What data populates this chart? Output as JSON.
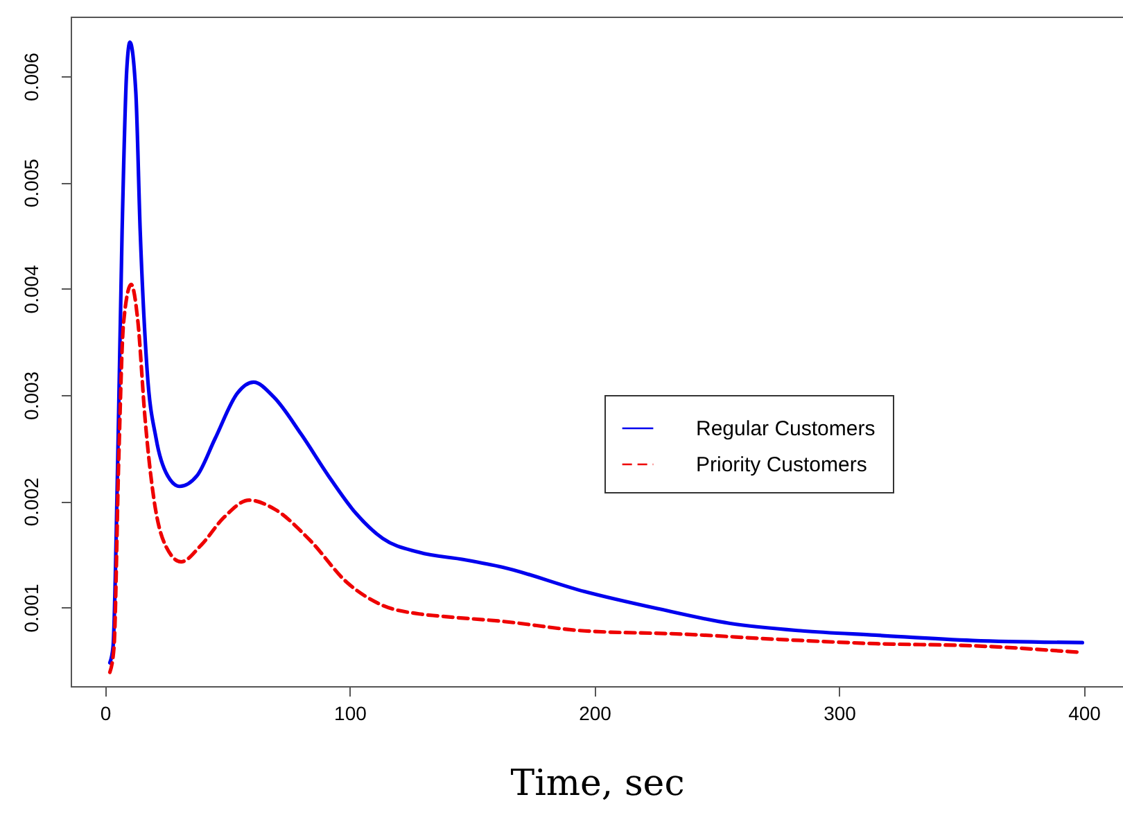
{
  "chart_data": {
    "type": "line",
    "xlabel": "Time, sec",
    "xlim": [
      -14,
      416
    ],
    "xticks": [
      0,
      100,
      200,
      300,
      400
    ],
    "ylim": [
      0.00026,
      0.00656
    ],
    "yticks": [
      0.001,
      0.002,
      0.003,
      0.004,
      0.005,
      0.006
    ],
    "legend": "right",
    "series": [
      {
        "name": "Regular Customers",
        "color": "#0000ee",
        "line_style": "solid",
        "x": [
          2,
          3.3,
          5.2,
          7,
          8.9,
          10.2,
          12.6,
          14.4,
          17.2,
          20.9,
          25.6,
          30.5,
          37.6,
          45,
          54.2,
          60.7,
          69,
          80.2,
          91.3,
          102.4,
          113.5,
          128.3,
          146.8,
          162.3,
          196,
          225.7,
          255.5,
          285,
          315,
          354.6,
          399.4
        ],
        "values": [
          0.00048,
          0.00063,
          0.00237,
          0.00454,
          0.00606,
          0.00632,
          0.00585,
          0.00454,
          0.00324,
          0.00259,
          0.00224,
          0.00214,
          0.00224,
          0.00259,
          0.00302,
          0.00312,
          0.00298,
          0.00263,
          0.00224,
          0.00189,
          0.00165,
          0.00152,
          0.00145,
          0.00138,
          0.00115,
          0.00099,
          0.00085,
          0.00078,
          0.00074,
          0.00069,
          0.00067
        ]
      },
      {
        "name": "Priority Customers",
        "color": "#ee0000",
        "line_style": "dashed",
        "x": [
          2,
          3.7,
          5.6,
          7.6,
          10.7,
          13.5,
          16.3,
          20,
          24.6,
          31.1,
          39.4,
          48.7,
          58.9,
          69,
          83.9,
          98.7,
          113.5,
          128.3,
          136.5,
          162.3,
          196,
          235.7,
          275.4,
          315,
          354.6,
          397.4
        ],
        "values": [
          0.00039,
          0.00063,
          0.00237,
          0.00368,
          0.00404,
          0.00368,
          0.0028,
          0.00202,
          0.00159,
          0.00143,
          0.00159,
          0.00185,
          0.00201,
          0.00193,
          0.00163,
          0.00124,
          0.00102,
          0.00094,
          0.00092,
          0.00087,
          0.00078,
          0.00075,
          0.0007,
          0.00066,
          0.00064,
          0.00058
        ]
      }
    ]
  }
}
